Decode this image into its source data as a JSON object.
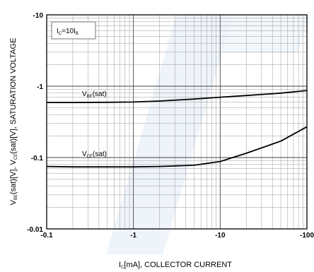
{
  "chart_data": {
    "type": "line",
    "title": "",
    "xlabel": {
      "prefix": "I",
      "sub": "C",
      "suffix": "[mA], COLLECTOR CURRENT"
    },
    "ylabel": {
      "parts": [
        {
          "t": "V"
        },
        {
          "t": "BE",
          "sub": true
        },
        {
          "t": "(sat)[V], V"
        },
        {
          "t": "CE",
          "sub": true
        },
        {
          "t": "(sat)[V], SATURATION VOLTAGE"
        }
      ]
    },
    "x_scale": "log",
    "y_scale": "log",
    "xlim": [
      -0.1,
      -100
    ],
    "ylim": [
      -0.01,
      -10
    ],
    "x_ticks": [
      "-0.1",
      "-1",
      "-10",
      "-100"
    ],
    "y_ticks": [
      "-0.01",
      "-0.1",
      "-1",
      "-10"
    ],
    "grid": true,
    "condition": {
      "prefix": "I",
      "sub1": "C",
      "mid": "=10I",
      "sub2": "B"
    },
    "series": [
      {
        "name": "VBE(sat)",
        "label": {
          "prefix": "V",
          "sub": "BE",
          "suffix": "(sat)"
        },
        "x": [
          -0.1,
          -0.2,
          -0.5,
          -1,
          -2,
          -5,
          -10,
          -20,
          -50,
          -100
        ],
        "y": [
          -0.59,
          -0.59,
          -0.595,
          -0.6,
          -0.62,
          -0.66,
          -0.7,
          -0.74,
          -0.8,
          -0.87
        ]
      },
      {
        "name": "VCE(sat)",
        "label": {
          "prefix": "V",
          "sub": "CE",
          "suffix": "(sat)"
        },
        "x": [
          -0.1,
          -0.2,
          -0.5,
          -1,
          -2,
          -5,
          -10,
          -20,
          -50,
          -100
        ],
        "y": [
          -0.075,
          -0.074,
          -0.074,
          -0.074,
          -0.075,
          -0.078,
          -0.088,
          -0.115,
          -0.17,
          -0.27
        ]
      }
    ]
  }
}
